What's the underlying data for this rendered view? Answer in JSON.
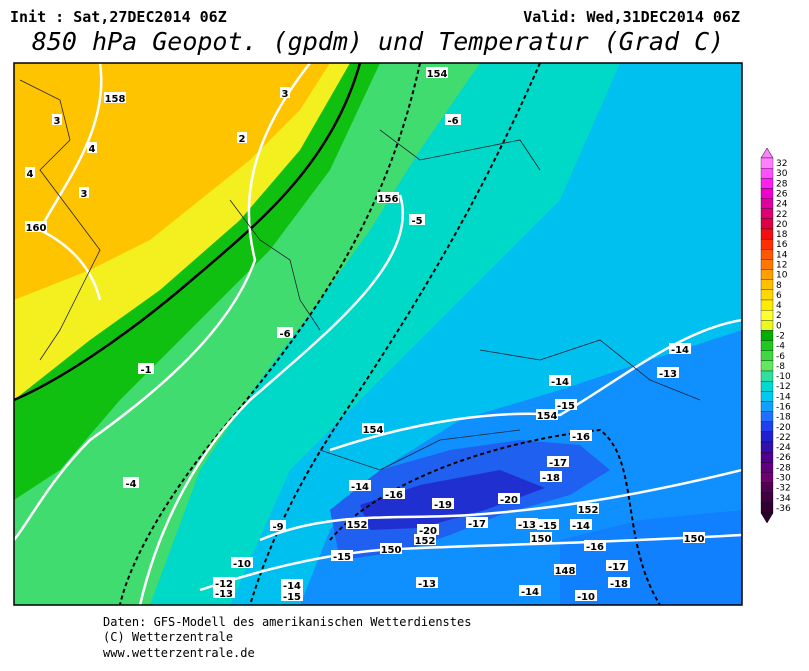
{
  "header": {
    "init": "Init : Sat,27DEC2014 06Z",
    "valid": "Valid: Wed,31DEC2014 06Z",
    "title": "850 hPa Geopot. (gpdm) und Temperatur (Grad C)"
  },
  "map": {
    "labels": [
      "158",
      "3",
      "3",
      "4",
      "2",
      "4",
      "3",
      "160",
      "154",
      "-6",
      "156",
      "-5",
      "-6",
      "-1",
      "-14",
      "-13",
      "-14",
      "-15",
      "154",
      "154",
      "-16",
      "-4",
      "-17",
      "-18",
      "-14",
      "-16",
      "-19",
      "-20",
      "152",
      "-9",
      "152",
      "-20",
      "152",
      "-17",
      "-13",
      "-15",
      "-14",
      "150",
      "-10",
      "-15",
      "150",
      "-16",
      "-17",
      "150",
      "-12",
      "-13",
      "-14",
      "-15",
      "-13",
      "148",
      "-18",
      "-14",
      "-10"
    ]
  },
  "colorbar": {
    "ticks": [
      32,
      30,
      28,
      26,
      24,
      22,
      20,
      18,
      16,
      14,
      12,
      10,
      8,
      6,
      4,
      2,
      0,
      -2,
      -4,
      -6,
      -8,
      -10,
      -12,
      -14,
      -16,
      -18,
      -20,
      -22,
      -24,
      -26,
      -28,
      -30,
      -32,
      -34,
      -36
    ],
    "colors": [
      "#ff80ff",
      "#ff50ff",
      "#ff20f0",
      "#f000d0",
      "#e000a0",
      "#e00070",
      "#e00040",
      "#f01010",
      "#ff3000",
      "#ff5800",
      "#ff7800",
      "#ffa000",
      "#ffc000",
      "#ffd800",
      "#ffec00",
      "#ffff30",
      "#e8f820",
      "#00b000",
      "#20c820",
      "#40d840",
      "#60e860",
      "#30e0a0",
      "#00d8d0",
      "#00c8f0",
      "#10a0ff",
      "#2070ff",
      "#2040f0",
      "#2020d0",
      "#3010b0",
      "#500090",
      "#600080",
      "#700070",
      "#500050",
      "#400040",
      "#300030"
    ]
  },
  "footer": {
    "source": "Daten: GFS-Modell des amerikanischen Wetterdienstes",
    "copyright": "(C) Wetterzentrale",
    "url": "www.wetterzentrale.de"
  }
}
